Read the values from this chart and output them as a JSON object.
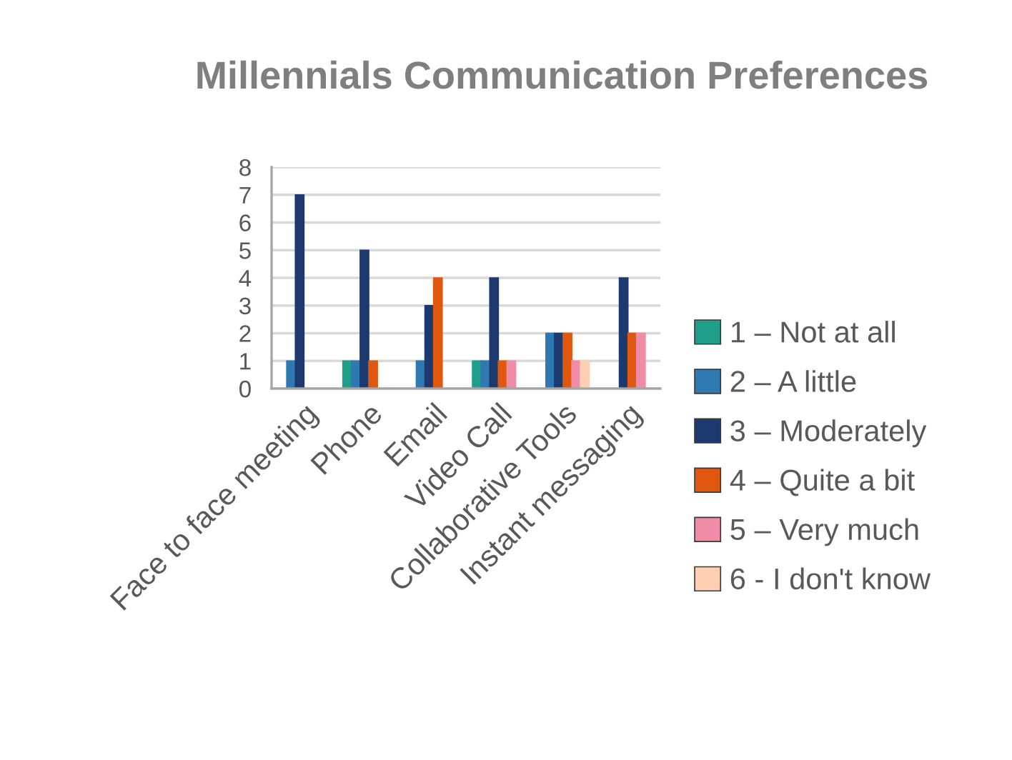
{
  "chart_data": {
    "type": "bar",
    "title": "Millennials Communication Preferences",
    "categories": [
      "Face to face meeting",
      "Phone",
      "Email",
      "Video Call",
      "Collaborative Tools",
      "Instant messaging"
    ],
    "series": [
      {
        "name": "1 – Not at all",
        "color": "#1f9e8a",
        "values": [
          0,
          1,
          0,
          1,
          0,
          0
        ]
      },
      {
        "name": "2 – A little",
        "color": "#2f79b3",
        "values": [
          1,
          1,
          1,
          1,
          2,
          0
        ]
      },
      {
        "name": "3 – Moderately",
        "color": "#1c3a70",
        "values": [
          7,
          5,
          3,
          4,
          2,
          4
        ]
      },
      {
        "name": "4 – Quite a bit",
        "color": "#e0580f",
        "values": [
          0,
          1,
          4,
          1,
          2,
          2
        ]
      },
      {
        "name": "5 – Very much",
        "color": "#f08ca8",
        "values": [
          0,
          0,
          0,
          1,
          1,
          2
        ]
      },
      {
        "name": "6 - I don't know",
        "color": "#ffcfb3",
        "values": [
          0,
          0,
          0,
          0,
          1,
          0
        ]
      }
    ],
    "ylim": [
      0,
      8
    ],
    "yticks": [
      0,
      1,
      2,
      3,
      4,
      5,
      6,
      7,
      8
    ],
    "grid": "y",
    "legend": "right"
  }
}
